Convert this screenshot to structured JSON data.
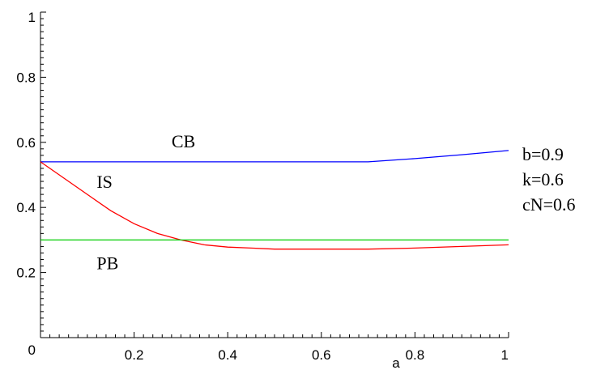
{
  "chart_data": {
    "type": "line",
    "title": "",
    "xlabel": "a",
    "ylabel": "",
    "xlim": [
      0,
      1
    ],
    "ylim": [
      0,
      1
    ],
    "x_ticks": [
      {
        "value": 0.2,
        "label": "0.2"
      },
      {
        "value": 0.4,
        "label": "0.4"
      },
      {
        "value": 0.6,
        "label": "0.6"
      },
      {
        "value": 0.8,
        "label": "0.8"
      },
      {
        "value": 1,
        "label": "1"
      }
    ],
    "y_ticks": [
      {
        "value": 0,
        "label": "0"
      },
      {
        "value": 0.2,
        "label": "0.2"
      },
      {
        "value": 0.4,
        "label": "0.4"
      },
      {
        "value": 0.6,
        "label": "0.6"
      },
      {
        "value": 0.8,
        "label": "0.8"
      },
      {
        "value": 1,
        "label": "1"
      }
    ],
    "grid": false,
    "series": [
      {
        "name": "CB",
        "color": "#0000ff",
        "x": [
          0,
          0.1,
          0.2,
          0.3,
          0.4,
          0.5,
          0.6,
          0.7,
          0.8,
          0.9,
          1.0
        ],
        "y": [
          0.54,
          0.54,
          0.54,
          0.54,
          0.54,
          0.54,
          0.54,
          0.54,
          0.55,
          0.562,
          0.575
        ],
        "label_at": {
          "x": 0.28,
          "y": 0.585
        }
      },
      {
        "name": "IS",
        "color": "#ff0000",
        "x": [
          0,
          0.05,
          0.1,
          0.15,
          0.2,
          0.25,
          0.3,
          0.35,
          0.4,
          0.45,
          0.5,
          0.6,
          0.7,
          0.8,
          0.9,
          1.0
        ],
        "y": [
          0.54,
          0.49,
          0.44,
          0.39,
          0.35,
          0.32,
          0.3,
          0.285,
          0.278,
          0.275,
          0.272,
          0.272,
          0.272,
          0.275,
          0.28,
          0.285
        ],
        "label_at": {
          "x": 0.12,
          "y": 0.46
        }
      },
      {
        "name": "PB",
        "color": "#00cc00",
        "x": [
          0,
          1.0
        ],
        "y": [
          0.3,
          0.3
        ],
        "label_at": {
          "x": 0.12,
          "y": 0.21
        }
      }
    ],
    "annotations": [
      "b=0.9",
      "k=0.6",
      "cN=0.6"
    ]
  }
}
